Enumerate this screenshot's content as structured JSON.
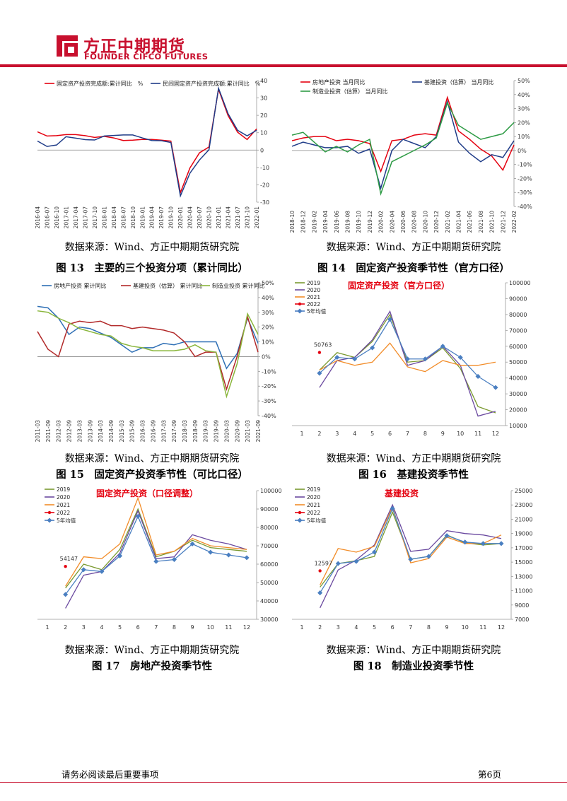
{
  "header": {
    "brand_cn": "方正中期期货",
    "brand_en": "FOUNDER CIFCO FUTURES",
    "brand_color": "#c8102e"
  },
  "figures": [
    {
      "source": "数据来源：Wind、方正中期期货研究院",
      "caption": "图 13　主要的三个投资分项（累计同比）"
    },
    {
      "source": "数据来源：Wind、方正中期期货研究院",
      "caption": "图 14　固定资产投资季节性（官方口径）"
    },
    {
      "source": "数据来源：Wind、方正中期期货研究院",
      "caption": "图 15　固定资产投资季节性（可比口径）"
    },
    {
      "source": "数据来源：Wind、方正中期期货研究院",
      "caption": "图 16　基建投资季节性"
    },
    {
      "source": "数据来源：Wind、方正中期期货研究院",
      "caption": "图 17　房地产投资季节性"
    },
    {
      "source": "数据来源：Wind、方正中期期货研究院",
      "caption": "图 18　制造业投资季节性"
    }
  ],
  "footer": {
    "notice": "请务必阅读最后重要事项",
    "page": "第6页"
  },
  "chart_data": [
    {
      "type": "line",
      "x": [
        "2016-04",
        "2016-07",
        "2016-10",
        "2017-01",
        "2017-04",
        "2017-07",
        "2017-10",
        "2018-01",
        "2018-04",
        "2018-07",
        "2018-10",
        "2019-01",
        "2019-04",
        "2019-07",
        "2019-10",
        "2020-01",
        "2020-04",
        "2020-07",
        "2020-10",
        "2021-01",
        "2021-04",
        "2021-07",
        "2021-10",
        "2022-01"
      ],
      "x_labels": [
        "2016-04",
        "2016-07",
        "2016-10",
        "2017-01",
        "2017-04",
        "2017-07",
        "2017-10",
        "2018-01",
        "2018-04",
        "2018-07",
        "2018-10",
        "2019-01",
        "2019-04",
        "2019-07",
        "2019-10",
        "2020-01",
        "2020-04",
        "2020-07",
        "2020-10",
        "2021-01",
        "2021-04",
        "2021-07",
        "2021-10",
        "2022-01"
      ],
      "ylim": [
        -30,
        40
      ],
      "y_ticks": [
        -30,
        -20,
        -10,
        0,
        10,
        20,
        30,
        40
      ],
      "y_tick_labels": [
        "-30",
        "-20",
        "-10",
        "0",
        "10",
        "20",
        "30",
        "40"
      ],
      "grid": false,
      "legend_position": "top",
      "series": [
        {
          "name": "固定资产投资完成额:累计同比　%",
          "color": "#e4000f",
          "values": [
            10.5,
            8.1,
            8.3,
            8.9,
            8.9,
            8.3,
            7.3,
            7.9,
            7.0,
            5.5,
            5.7,
            6.1,
            6.1,
            5.7,
            5.2,
            -24.5,
            -10.3,
            -1.6,
            1.8,
            35.0,
            19.9,
            10.3,
            6.1,
            12.2
          ]
        },
        {
          "name": "民间固定资产投资完成额:累计同比　%",
          "color": "#1f3c88",
          "values": [
            5.2,
            2.1,
            2.9,
            7.7,
            6.9,
            6.0,
            5.8,
            8.1,
            8.4,
            8.7,
            8.7,
            7.0,
            5.5,
            5.4,
            4.4,
            -26.4,
            -13.3,
            -5.7,
            0.2,
            35.6,
            21.0,
            11.4,
            8.2,
            11.4
          ]
        }
      ]
    },
    {
      "type": "line",
      "x": [
        "2018-10",
        "2018-12",
        "2019-02",
        "2019-04",
        "2019-06",
        "2019-08",
        "2019-10",
        "2019-12",
        "2020-02",
        "2020-04",
        "2020-06",
        "2020-08",
        "2020-10",
        "2020-12",
        "2021-02",
        "2021-04",
        "2021-06",
        "2021-08",
        "2021-10",
        "2021-12",
        "2022-02"
      ],
      "x_labels": [
        "2018-10",
        "2018-12",
        "2019-02",
        "2019-04",
        "2019-06",
        "2019-08",
        "2019-10",
        "2019-12",
        "2020-02",
        "2020-04",
        "2020-06",
        "2020-08",
        "2020-10",
        "2020-12",
        "2021-02",
        "2021-04",
        "2021-06",
        "2021-08",
        "2021-10",
        "2021-12",
        "2022-02"
      ],
      "ylim": [
        -40,
        50
      ],
      "y_ticks": [
        -40,
        -30,
        -20,
        -10,
        0,
        10,
        20,
        30,
        40,
        50
      ],
      "y_tick_labels": [
        "-40%",
        "-30%",
        "-20%",
        "-10%",
        "0%",
        "10%",
        "20%",
        "30%",
        "40%",
        "50%"
      ],
      "grid": false,
      "legend_position": "top",
      "series": [
        {
          "name": "房地产投资 当月同比",
          "color": "#e4000f",
          "values": [
            7,
            9,
            10,
            10,
            7,
            8,
            7,
            5,
            -15,
            7,
            8,
            11,
            12,
            11,
            38,
            14,
            8,
            1,
            -4,
            -14,
            4
          ]
        },
        {
          "name": "基建投资（估算） 当月同比",
          "color": "#1f3c88",
          "values": [
            3,
            6,
            4,
            2,
            2,
            3,
            -2,
            1,
            -27,
            0,
            8,
            5,
            2,
            10,
            35,
            6,
            -2,
            -8,
            -3,
            -5,
            7
          ]
        },
        {
          "name": "制造业投资（估算） 当月同比",
          "color": "#2e9b45",
          "values": [
            11,
            13,
            6,
            -1,
            3,
            -1,
            4,
            8,
            -31,
            -8,
            -4,
            0,
            4,
            9,
            34,
            18,
            13,
            8,
            10,
            12,
            20
          ]
        }
      ]
    },
    {
      "type": "line",
      "x": [
        "2011-03",
        "2011-09",
        "2012-03",
        "2012-09",
        "2013-03",
        "2013-09",
        "2014-03",
        "2014-09",
        "2015-03",
        "2015-09",
        "2016-03",
        "2016-09",
        "2017-03",
        "2017-09",
        "2018-03",
        "2018-09",
        "2019-03",
        "2019-09",
        "2020-03",
        "2020-09",
        "2021-03",
        "2021-09"
      ],
      "x_labels": [
        "2011-03",
        "2011-09",
        "2012-03",
        "2012-09",
        "2013-03",
        "2013-09",
        "2014-03",
        "2014-09",
        "2015-03",
        "2015-09",
        "2016-03",
        "2016-09",
        "2017-03",
        "2017-09",
        "2018-03",
        "2018-09",
        "2019-03",
        "2019-09",
        "2020-03",
        "2020-09",
        "2021-03",
        "2021-09"
      ],
      "ylim": [
        -40,
        50
      ],
      "y_ticks": [
        -40,
        -30,
        -20,
        -10,
        0,
        10,
        20,
        30,
        40,
        50
      ],
      "y_tick_labels": [
        "-40%",
        "-30%",
        "-20%",
        "-10%",
        "0%",
        "10%",
        "20%",
        "30%",
        "40%",
        "50%"
      ],
      "grid": false,
      "legend_position": "top",
      "series": [
        {
          "name": "房地产投资 累计同比",
          "color": "#2e6fb5",
          "values": [
            34,
            33,
            26,
            15,
            20,
            19,
            16,
            13,
            8,
            3,
            6,
            6,
            9,
            8,
            10,
            10,
            10,
            10,
            -8,
            2,
            26,
            9
          ]
        },
        {
          "name": "基建投资（估算） 累计同比",
          "color": "#b22a2a",
          "values": [
            17,
            5,
            0,
            22,
            24,
            23,
            24,
            21,
            21,
            19,
            20,
            19,
            18,
            16,
            10,
            0,
            3,
            3,
            -22,
            0,
            27,
            3
          ]
        },
        {
          "name": "制造业投资 累计同比",
          "color": "#8ab63c",
          "values": [
            31,
            30,
            26,
            23,
            19,
            17,
            15,
            14,
            9,
            7,
            6,
            4,
            4,
            4,
            5,
            8,
            4,
            3,
            -27,
            -5,
            29,
            15
          ]
        }
      ]
    },
    {
      "type": "line",
      "title": "固定资产投资（官方口径）",
      "x": [
        1,
        2,
        3,
        4,
        5,
        6,
        7,
        8,
        9,
        10,
        11,
        12
      ],
      "x_labels": [
        "1",
        "2",
        "3",
        "4",
        "5",
        "6",
        "7",
        "8",
        "9",
        "10",
        "11",
        "12"
      ],
      "ylim": [
        10000,
        100000
      ],
      "y_ticks": [
        10000,
        20000,
        30000,
        40000,
        50000,
        60000,
        70000,
        80000,
        90000,
        100000
      ],
      "y_tick_labels": [
        "10000",
        "20000",
        "30000",
        "40000",
        "50000",
        "60000",
        "70000",
        "80000",
        "90000",
        "100000"
      ],
      "grid": false,
      "legend_position": "top-left",
      "annotation": "50763",
      "series": [
        {
          "name": "2019",
          "color": "#7a9a30",
          "values": [
            null,
            45000,
            56000,
            53000,
            63000,
            80000,
            50000,
            51000,
            59000,
            46000,
            22000,
            18000
          ]
        },
        {
          "name": "2020",
          "color": "#6b4aa0",
          "values": [
            null,
            34000,
            51000,
            53000,
            64000,
            82000,
            48000,
            51000,
            60000,
            48000,
            16000,
            19000
          ]
        },
        {
          "name": "2021",
          "color": "#f28c28",
          "values": [
            null,
            45000,
            51000,
            48000,
            50000,
            62000,
            47000,
            44000,
            51000,
            48000,
            48000,
            50000
          ]
        },
        {
          "name": "2022",
          "color": "#e4000f",
          "values": [
            null,
            50763,
            null,
            null,
            null,
            null,
            null,
            null,
            null,
            null,
            null,
            null
          ]
        },
        {
          "name": "5年均值",
          "color": "#4a7fc1",
          "values": [
            null,
            43000,
            53000,
            52000,
            59000,
            77000,
            52000,
            52000,
            60000,
            53000,
            41000,
            34000
          ]
        }
      ]
    },
    {
      "type": "line",
      "title": "固定资产投资（口径调整）",
      "x": [
        1,
        2,
        3,
        4,
        5,
        6,
        7,
        8,
        9,
        10,
        11,
        12
      ],
      "x_labels": [
        "1",
        "2",
        "3",
        "4",
        "5",
        "6",
        "7",
        "8",
        "9",
        "10",
        "11",
        "12"
      ],
      "ylim": [
        30000,
        100000
      ],
      "y_ticks": [
        30000,
        40000,
        50000,
        60000,
        70000,
        80000,
        90000,
        100000
      ],
      "y_tick_labels": [
        "30000",
        "40000",
        "50000",
        "60000",
        "70000",
        "80000",
        "90000",
        "100000"
      ],
      "grid": false,
      "legend_position": "top-left",
      "annotation": "54147",
      "series": [
        {
          "name": "2019",
          "color": "#7a9a30",
          "values": [
            null,
            47000,
            60000,
            57000,
            68000,
            90000,
            64000,
            67000,
            73000,
            69000,
            68000,
            67000
          ]
        },
        {
          "name": "2020",
          "color": "#6b4aa0",
          "values": [
            null,
            36000,
            54000,
            56000,
            66000,
            89000,
            63000,
            64000,
            76000,
            73000,
            71000,
            68000
          ]
        },
        {
          "name": "2021",
          "color": "#f28c28",
          "values": [
            null,
            48000,
            64000,
            63000,
            71000,
            96000,
            65000,
            67000,
            74000,
            70000,
            69000,
            68000
          ]
        },
        {
          "name": "2022",
          "color": "#e4000f",
          "values": [
            null,
            54147,
            null,
            null,
            null,
            null,
            null,
            null,
            null,
            null,
            null,
            null
          ]
        },
        {
          "name": "5年均值",
          "color": "#4a7fc1",
          "values": [
            null,
            43500,
            57000,
            56000,
            64500,
            86000,
            61500,
            62500,
            71000,
            66500,
            65000,
            63500
          ]
        }
      ]
    },
    {
      "type": "line",
      "title": "基建投资",
      "x": [
        1,
        2,
        3,
        4,
        5,
        6,
        7,
        8,
        9,
        10,
        11,
        12
      ],
      "x_labels": [
        "1",
        "2",
        "3",
        "4",
        "5",
        "6",
        "7",
        "8",
        "9",
        "10",
        "11",
        "12"
      ],
      "ylim": [
        7000,
        25000
      ],
      "y_ticks": [
        7000,
        9000,
        11000,
        13000,
        15000,
        17000,
        19000,
        21000,
        23000,
        25000
      ],
      "y_tick_labels": [
        "7000",
        "9000",
        "11000",
        "13000",
        "15000",
        "17000",
        "19000",
        "21000",
        "23000",
        "25000"
      ],
      "grid": false,
      "legend_position": "top-left",
      "annotation": "12597",
      "series": [
        {
          "name": "2019",
          "color": "#7a9a30",
          "values": [
            null,
            11500,
            14800,
            15200,
            15800,
            22000,
            15400,
            15800,
            18800,
            17700,
            17400,
            17600
          ]
        },
        {
          "name": "2020",
          "color": "#6b4aa0",
          "values": [
            null,
            8600,
            13900,
            15300,
            17400,
            23000,
            16500,
            16800,
            19400,
            19000,
            18800,
            18300
          ]
        },
        {
          "name": "2021",
          "color": "#f28c28",
          "values": [
            null,
            11800,
            16900,
            16400,
            17200,
            22700,
            14900,
            15500,
            18500,
            17600,
            17600,
            18800
          ]
        },
        {
          "name": "2022",
          "color": "#e4000f",
          "values": [
            null,
            12597,
            null,
            null,
            null,
            null,
            null,
            null,
            null,
            null,
            null,
            null
          ]
        },
        {
          "name": "5年均值",
          "color": "#4a7fc1",
          "values": [
            null,
            10700,
            14800,
            15100,
            16400,
            22500,
            15400,
            15800,
            18700,
            17800,
            17600,
            17600
          ]
        }
      ]
    }
  ]
}
